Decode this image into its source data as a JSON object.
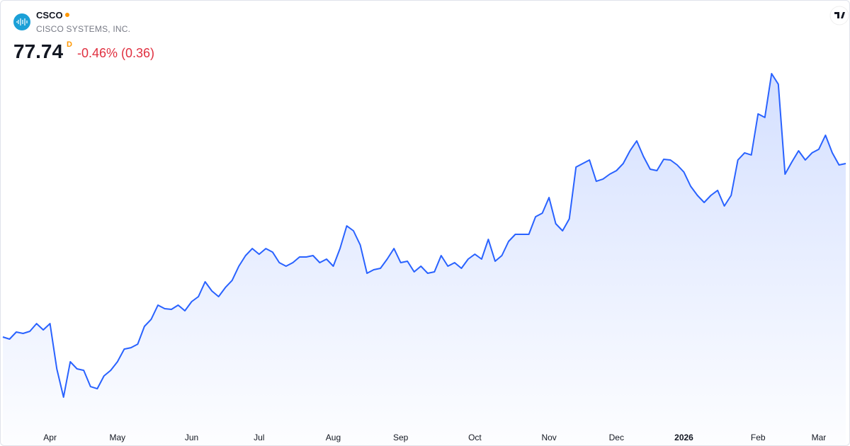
{
  "header": {
    "symbol": "CSCO",
    "name": "CISCO SYSTEMS, INC.",
    "price": "77.74",
    "interval": "D",
    "change": "-0.46% (0.36)"
  },
  "chart_data": {
    "type": "area",
    "color": "#2962ff",
    "categories": [
      null,
      null,
      null,
      null,
      null,
      null,
      null,
      "Apr",
      null,
      null,
      null,
      null,
      null,
      null,
      null,
      null,
      null,
      "May",
      null,
      null,
      null,
      null,
      null,
      null,
      null,
      null,
      null,
      null,
      "Jun",
      null,
      null,
      null,
      null,
      null,
      null,
      null,
      null,
      null,
      "Jul",
      null,
      null,
      null,
      null,
      null,
      null,
      null,
      null,
      null,
      null,
      "Aug",
      null,
      null,
      null,
      null,
      null,
      null,
      null,
      null,
      null,
      "Sep",
      null,
      null,
      null,
      null,
      null,
      null,
      null,
      null,
      null,
      null,
      "Oct",
      null,
      null,
      null,
      null,
      null,
      null,
      null,
      null,
      null,
      null,
      "Nov",
      null,
      null,
      null,
      null,
      null,
      null,
      null,
      null,
      null,
      "Dec",
      null,
      null,
      null,
      null,
      null,
      null,
      null,
      null,
      null,
      "2026",
      null,
      null,
      null,
      null,
      null,
      null,
      null,
      null,
      null,
      null,
      "Feb",
      null,
      null,
      null,
      null,
      null,
      null,
      null,
      null,
      "Mar",
      null,
      null,
      null,
      null
    ],
    "values": [
      59.66,
      59.44,
      60.18,
      60.03,
      60.25,
      61.06,
      60.4,
      61.06,
      56.34,
      53.39,
      57.08,
      56.34,
      56.19,
      54.49,
      54.27,
      55.6,
      56.19,
      57.08,
      58.4,
      58.55,
      58.92,
      60.77,
      61.5,
      62.98,
      62.61,
      62.54,
      62.98,
      62.39,
      63.35,
      63.87,
      65.42,
      64.46,
      63.87,
      64.82,
      65.56,
      67.04,
      68.15,
      68.88,
      68.29,
      68.88,
      68.51,
      67.41,
      67.04,
      67.41,
      68.0,
      68.0,
      68.15,
      67.41,
      67.78,
      67.04,
      68.88,
      71.24,
      70.73,
      69.25,
      66.3,
      66.67,
      66.82,
      67.78,
      68.88,
      67.41,
      67.56,
      66.45,
      67.04,
      66.3,
      66.45,
      68.15,
      67.04,
      67.41,
      66.82,
      67.78,
      68.29,
      67.78,
      69.84,
      67.56,
      68.15,
      69.62,
      70.36,
      70.36,
      70.36,
      72.2,
      72.57,
      74.2,
      71.47,
      70.73,
      71.98,
      77.37,
      77.74,
      78.11,
      75.89,
      76.12,
      76.63,
      77.0,
      77.74,
      79.07,
      80.1,
      78.48,
      77.15,
      77.0,
      78.18,
      78.11,
      77.59,
      76.85,
      75.38,
      74.42,
      73.68,
      74.42,
      74.94,
      73.31,
      74.42,
      78.11,
      78.85,
      78.63,
      82.91,
      82.54,
      87.11,
      86.01,
      76.63,
      77.89,
      79.07,
      78.11,
      78.85,
      79.22,
      80.69,
      78.85,
      77.59,
      77.74
    ]
  }
}
